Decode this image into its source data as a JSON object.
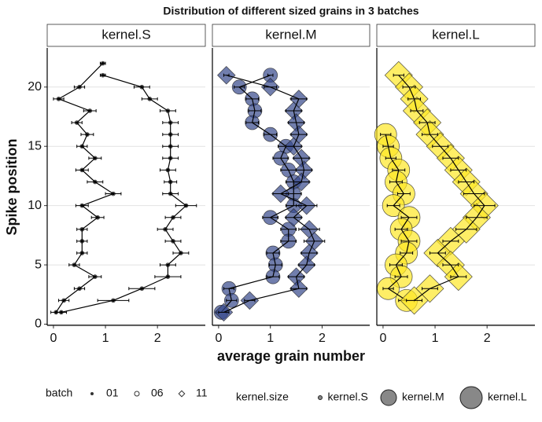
{
  "chart_data": {
    "type": "scatter",
    "title": "Distribution of different sized grains in 3 batches",
    "xlabel": "average grain number",
    "ylabel": "Spike position",
    "xlim": [
      -0.12,
      2.92
    ],
    "ylim": [
      -0.1,
      23.3
    ],
    "xticks": [
      0,
      1,
      2
    ],
    "yticks": [
      0,
      5,
      10,
      15,
      20
    ],
    "grid": true,
    "alpha": 0.7,
    "facets": [
      {
        "title": "kernel.S",
        "color": "#444444",
        "size": "small",
        "series": [
          {
            "shape": "dot",
            "y": [
              22,
              20,
              19,
              18,
              17,
              16,
              15,
              14,
              13,
              12,
              11,
              10,
              9,
              8,
              7,
              6,
              5,
              4,
              3,
              2,
              1
            ],
            "x": [
              0.95,
              0.5,
              0.1,
              0.7,
              0.45,
              0.65,
              0.55,
              0.8,
              0.55,
              0.8,
              1.15,
              0.55,
              0.85,
              0.55,
              0.55,
              0.55,
              0.4,
              0.8,
              0.5,
              0.2,
              0.05
            ],
            "xerr": [
              0.05,
              0.1,
              0.1,
              0.12,
              0.1,
              0.12,
              0.1,
              0.12,
              0.12,
              0.15,
              0.15,
              0.12,
              0.12,
              0.1,
              0.1,
              0.1,
              0.1,
              0.12,
              0.1,
              0.1,
              0.1
            ]
          },
          {
            "shape": "dot",
            "y": [
              1,
              2,
              3,
              4,
              5,
              6,
              7,
              8,
              9,
              10,
              11,
              12,
              13,
              14,
              15,
              16,
              17,
              18,
              19,
              20,
              21
            ],
            "x": [
              0.15,
              1.15,
              1.7,
              2.2,
              2.2,
              2.45,
              2.3,
              2.15,
              2.3,
              2.55,
              2.25,
              2.25,
              2.2,
              2.25,
              2.25,
              2.25,
              2.25,
              2.2,
              1.85,
              1.7,
              0.95
            ],
            "xerr": [
              0.1,
              0.3,
              0.25,
              0.25,
              0.15,
              0.15,
              0.15,
              0.15,
              0.15,
              0.2,
              0.15,
              0.12,
              0.15,
              0.15,
              0.15,
              0.15,
              0.15,
              0.15,
              0.15,
              0.15,
              0.05
            ]
          }
        ]
      },
      {
        "title": "kernel.M",
        "color": "#34478a",
        "size": "medium",
        "series": [
          {
            "shape": "circle",
            "y": [
              21,
              20,
              19,
              18,
              17,
              16,
              15,
              14,
              13,
              12,
              11,
              10,
              9,
              8,
              7,
              6,
              5,
              4,
              3,
              2,
              1
            ],
            "x": [
              1.0,
              0.4,
              0.65,
              0.7,
              0.65,
              1.0,
              1.3,
              1.2,
              1.35,
              1.45,
              1.45,
              1.45,
              1.0,
              1.35,
              1.35,
              1.05,
              1.1,
              1.05,
              0.2,
              0.25,
              0.05
            ],
            "xerr": [
              0.05,
              0.1,
              0.12,
              0.12,
              0.12,
              0.12,
              0.15,
              0.15,
              0.15,
              0.15,
              0.15,
              0.15,
              0.15,
              0.15,
              0.15,
              0.12,
              0.12,
              0.12,
              0.1,
              0.1,
              0.1
            ]
          },
          {
            "shape": "diamond",
            "y": [
              21,
              20,
              19,
              18,
              17,
              16,
              15,
              14,
              13,
              12,
              11,
              10,
              9,
              8,
              7,
              6,
              5,
              4,
              3,
              2,
              1
            ],
            "x": [
              0.15,
              1.0,
              1.55,
              1.45,
              1.5,
              1.55,
              1.45,
              1.6,
              1.65,
              1.6,
              1.2,
              1.7,
              1.45,
              1.75,
              1.85,
              1.75,
              1.7,
              1.5,
              1.55,
              0.6,
              0.1
            ],
            "xerr": [
              0.05,
              0.12,
              0.15,
              0.15,
              0.15,
              0.15,
              0.15,
              0.15,
              0.15,
              0.15,
              0.15,
              0.2,
              0.15,
              0.2,
              0.2,
              0.15,
              0.15,
              0.15,
              0.15,
              0.1,
              0.1
            ]
          }
        ]
      },
      {
        "title": "kernel.L",
        "color": "#fde725",
        "size": "large",
        "series": [
          {
            "shape": "circle",
            "y": [
              16,
              15,
              14,
              13,
              12,
              11,
              10,
              9,
              8,
              7,
              6,
              5,
              4,
              3,
              2
            ],
            "x": [
              0.05,
              0.1,
              0.15,
              0.3,
              0.25,
              0.4,
              0.2,
              0.5,
              0.35,
              0.5,
              0.45,
              0.25,
              0.35,
              0.1,
              0.45
            ],
            "xerr": [
              0.1,
              0.1,
              0.1,
              0.12,
              0.12,
              0.12,
              0.12,
              0.15,
              0.12,
              0.15,
              0.12,
              0.12,
              0.12,
              0.1,
              0.15
            ]
          },
          {
            "shape": "diamond",
            "y": [
              21,
              20,
              19,
              18,
              17,
              16,
              15,
              14,
              13,
              12,
              11,
              10,
              9,
              8,
              7,
              6,
              5,
              4,
              3,
              2
            ],
            "x": [
              0.3,
              0.5,
              0.6,
              0.65,
              0.85,
              0.9,
              1.1,
              1.3,
              1.45,
              1.6,
              1.75,
              1.95,
              1.8,
              1.6,
              1.3,
              1.05,
              1.3,
              1.45,
              0.9,
              0.6
            ],
            "xerr": [
              0.1,
              0.12,
              0.12,
              0.12,
              0.15,
              0.15,
              0.15,
              0.15,
              0.15,
              0.15,
              0.2,
              0.2,
              0.2,
              0.2,
              0.15,
              0.15,
              0.15,
              0.15,
              0.15,
              0.15
            ]
          }
        ]
      }
    ],
    "legend": {
      "batch": {
        "title": "batch",
        "labels": [
          "01",
          "06",
          "11"
        ]
      },
      "size": {
        "title": "kernel.size",
        "labels": [
          "kernel.S",
          "kernel.M",
          "kernel.L"
        ]
      }
    }
  }
}
